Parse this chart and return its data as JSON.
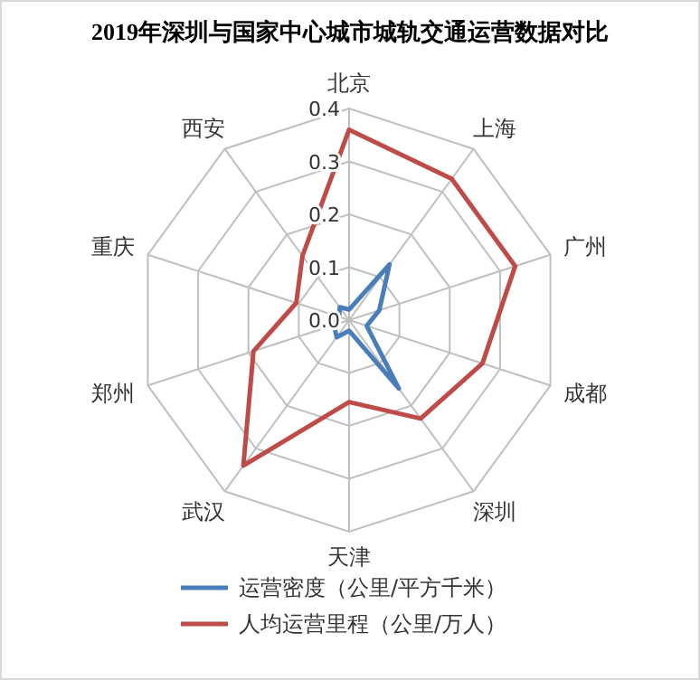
{
  "chart_data": {
    "type": "radar",
    "title": "2019年深圳与国家中心城市城轨交通运营数据对比",
    "categories": [
      "北京",
      "上海",
      "广州",
      "成都",
      "深圳",
      "天津",
      "武汉",
      "郑州",
      "重庆",
      "西安"
    ],
    "series": [
      {
        "name": "运营密度（公里/平方千米）",
        "color": "#4a7ebb",
        "values": [
          0.02,
          0.13,
          0.06,
          0.035,
          0.16,
          0.02,
          0.04,
          0.03,
          0.02,
          0.03
        ]
      },
      {
        "name": "人均运营里程（公里/万人）",
        "color": "#be4b48",
        "values": [
          0.36,
          0.33,
          0.33,
          0.265,
          0.23,
          0.155,
          0.34,
          0.19,
          0.105,
          0.15
        ]
      }
    ],
    "ylim": [
      0,
      0.4
    ],
    "yticks": [
      {
        "value": 0,
        "label": "0.0"
      },
      {
        "value": 0.1,
        "label": "0.1"
      },
      {
        "value": 0.2,
        "label": "0.2"
      },
      {
        "value": 0.3,
        "label": "0.3"
      },
      {
        "value": 0.4,
        "label": "0.4"
      }
    ],
    "grid": true,
    "legend": "bottom",
    "marker": "none",
    "line_style": "solid"
  }
}
